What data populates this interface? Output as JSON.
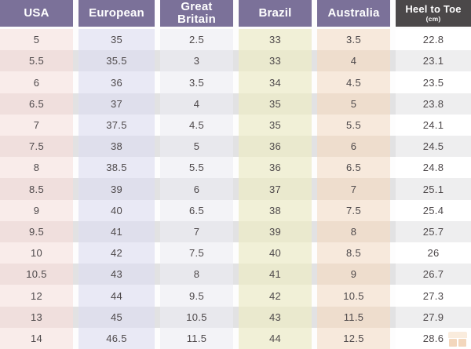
{
  "table": {
    "columns": [
      {
        "label": "USA",
        "sublabel": "",
        "header_bg": "#7b7199",
        "row_light": "#f9ecea",
        "row_dark": "#f0dfdd"
      },
      {
        "label": "European",
        "sublabel": "",
        "header_bg": "#7b7199",
        "row_light": "#e9e9f5",
        "row_dark": "#dfdfec"
      },
      {
        "label": "Great Britain",
        "sublabel": "",
        "header_bg": "#7b7199",
        "row_light": "#f3f3f7",
        "row_dark": "#e8e8ed"
      },
      {
        "label": "Brazil",
        "sublabel": "",
        "header_bg": "#7b7199",
        "row_light": "#f1f0d7",
        "row_dark": "#eae9ce"
      },
      {
        "label": "Australia",
        "sublabel": "",
        "header_bg": "#7b7199",
        "row_light": "#f7e9dc",
        "row_dark": "#eeddcd"
      },
      {
        "label": "Heel to Toe",
        "sublabel": "(cm)",
        "header_bg": "#4b4849",
        "row_light": "#ffffff",
        "row_dark": "#eeeeef"
      }
    ],
    "rows": [
      [
        "5",
        "35",
        "2.5",
        "33",
        "3.5",
        "22.8"
      ],
      [
        "5.5",
        "35.5",
        "3",
        "33",
        "4",
        "23.1"
      ],
      [
        "6",
        "36",
        "3.5",
        "34",
        "4.5",
        "23.5"
      ],
      [
        "6.5",
        "37",
        "4",
        "35",
        "5",
        "23.8"
      ],
      [
        "7",
        "37.5",
        "4.5",
        "35",
        "5.5",
        "24.1"
      ],
      [
        "7.5",
        "38",
        "5",
        "36",
        "6",
        "24.5"
      ],
      [
        "8",
        "38.5",
        "5.5",
        "36",
        "6.5",
        "24.8"
      ],
      [
        "8.5",
        "39",
        "6",
        "37",
        "7",
        "25.1"
      ],
      [
        "9",
        "40",
        "6.5",
        "38",
        "7.5",
        "25.4"
      ],
      [
        "9.5",
        "41",
        "7",
        "39",
        "8",
        "25.7"
      ],
      [
        "10",
        "42",
        "7.5",
        "40",
        "8.5",
        "26"
      ],
      [
        "10.5",
        "43",
        "8",
        "41",
        "9",
        "26.7"
      ],
      [
        "12",
        "44",
        "9.5",
        "42",
        "10.5",
        "27.3"
      ],
      [
        "13",
        "45",
        "10.5",
        "43",
        "11.5",
        "27.9"
      ],
      [
        "14",
        "46.5",
        "11.5",
        "44",
        "12.5",
        "28.6"
      ]
    ]
  },
  "colors": {
    "header_purple": "#7b7199",
    "header_dark": "#4b4849",
    "header_text": "#ffffff",
    "cell_text": "#4e494b",
    "row_shade": "#e2e2e3",
    "page_bg": "#fdfdfd"
  },
  "watermark": {
    "icon": "store-logo"
  }
}
